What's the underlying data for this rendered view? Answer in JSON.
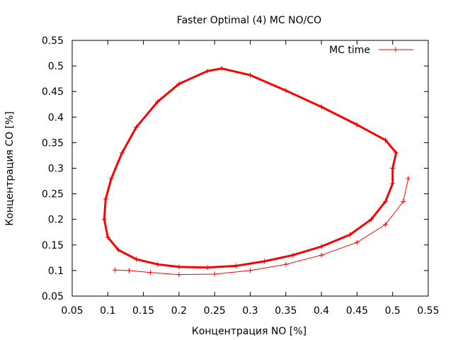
{
  "chart_data": {
    "type": "line",
    "title": "Faster Optimal (4) MC NO/CO",
    "xlabel": "Концентрация NO [%]",
    "ylabel": "Концентрация CO [%]",
    "xlim": [
      0.05,
      0.55
    ],
    "ylim": [
      0.05,
      0.55
    ],
    "xticks": [
      "0.05",
      "0.1",
      "0.15",
      "0.2",
      "0.25",
      "0.3",
      "0.35",
      "0.4",
      "0.45",
      "0.5",
      "0.55"
    ],
    "yticks": [
      "0.05",
      "0.1",
      "0.15",
      "0.2",
      "0.25",
      "0.3",
      "0.35",
      "0.4",
      "0.45",
      "0.5",
      "0.55"
    ],
    "grid": false,
    "legend": {
      "position": "top-right",
      "entries": [
        "MC time"
      ]
    },
    "colors": {
      "series": "#ff0000",
      "axis": "#000000"
    },
    "marker": "plus",
    "series": [
      {
        "name": "MC time",
        "start": [
          0.11,
          0.101
        ],
        "transient": [
          [
            0.11,
            0.101
          ],
          [
            0.13,
            0.1
          ],
          [
            0.16,
            0.096
          ],
          [
            0.2,
            0.092
          ],
          [
            0.25,
            0.093
          ],
          [
            0.3,
            0.1
          ],
          [
            0.35,
            0.112
          ],
          [
            0.4,
            0.13
          ],
          [
            0.45,
            0.155
          ],
          [
            0.49,
            0.19
          ],
          [
            0.515,
            0.235
          ],
          [
            0.522,
            0.28
          ]
        ],
        "limit_cycle": [
          [
            0.5,
            0.3
          ],
          [
            0.505,
            0.33
          ],
          [
            0.49,
            0.355
          ],
          [
            0.45,
            0.385
          ],
          [
            0.4,
            0.42
          ],
          [
            0.35,
            0.452
          ],
          [
            0.3,
            0.482
          ],
          [
            0.26,
            0.495
          ],
          [
            0.24,
            0.49
          ],
          [
            0.2,
            0.465
          ],
          [
            0.17,
            0.43
          ],
          [
            0.14,
            0.38
          ],
          [
            0.12,
            0.33
          ],
          [
            0.105,
            0.28
          ],
          [
            0.097,
            0.24
          ],
          [
            0.095,
            0.2
          ],
          [
            0.1,
            0.165
          ],
          [
            0.115,
            0.14
          ],
          [
            0.14,
            0.122
          ],
          [
            0.17,
            0.112
          ],
          [
            0.2,
            0.107
          ],
          [
            0.24,
            0.106
          ],
          [
            0.28,
            0.109
          ],
          [
            0.32,
            0.118
          ],
          [
            0.36,
            0.13
          ],
          [
            0.4,
            0.147
          ],
          [
            0.44,
            0.17
          ],
          [
            0.47,
            0.2
          ],
          [
            0.49,
            0.235
          ],
          [
            0.5,
            0.27
          ],
          [
            0.5,
            0.3
          ]
        ]
      }
    ]
  }
}
